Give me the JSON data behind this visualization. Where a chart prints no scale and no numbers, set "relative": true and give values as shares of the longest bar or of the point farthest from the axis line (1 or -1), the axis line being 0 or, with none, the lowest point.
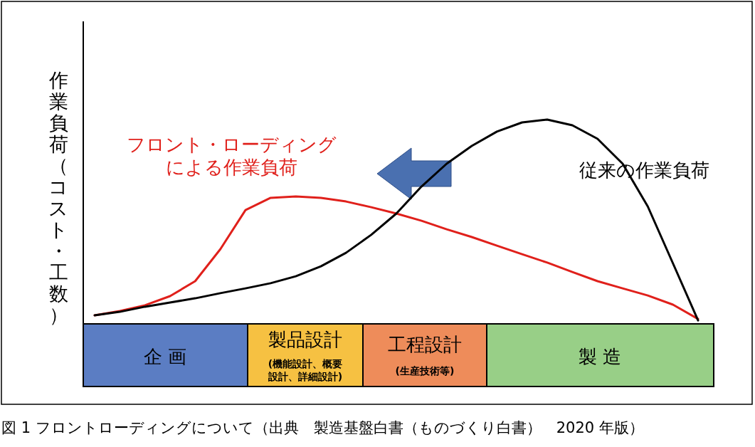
{
  "chart_data": {
    "type": "line",
    "relative": true,
    "ylabel": "作業負荷（コスト・工数）",
    "categories": [
      null,
      null,
      null,
      null,
      null,
      null,
      null,
      null,
      null,
      null,
      null,
      null,
      null,
      null,
      null,
      null,
      null,
      null,
      null,
      null,
      null,
      null,
      null,
      null,
      null
    ],
    "series": [
      {
        "name": "フロント・ローディングによる作業負荷",
        "color": "#e0201b",
        "values": [
          0.042,
          0.063,
          0.091,
          0.136,
          0.209,
          0.366,
          0.557,
          0.617,
          0.624,
          0.617,
          0.599,
          0.571,
          0.54,
          0.505,
          0.463,
          0.425,
          0.383,
          0.341,
          0.3,
          0.254,
          0.209,
          0.174,
          0.139,
          0.094,
          0.024
        ]
      },
      {
        "name": "従来の作業負荷",
        "color": "#000000",
        "values": [
          0.042,
          0.059,
          0.084,
          0.105,
          0.125,
          0.15,
          0.174,
          0.199,
          0.233,
          0.282,
          0.348,
          0.436,
          0.54,
          0.672,
          0.784,
          0.871,
          0.941,
          0.986,
          1.0,
          0.972,
          0.906,
          0.784,
          0.575,
          0.296,
          0.017
        ]
      }
    ],
    "annotations": [
      "企 画",
      "製品設計",
      "(機能設計、概要設計、詳細設計)",
      "工程設計",
      "(生産技術等)",
      "製 造",
      "図 1 フロントローディングについて（出典　製造基盤白書（ものづくり白書）　2020 年版）"
    ]
  }
}
